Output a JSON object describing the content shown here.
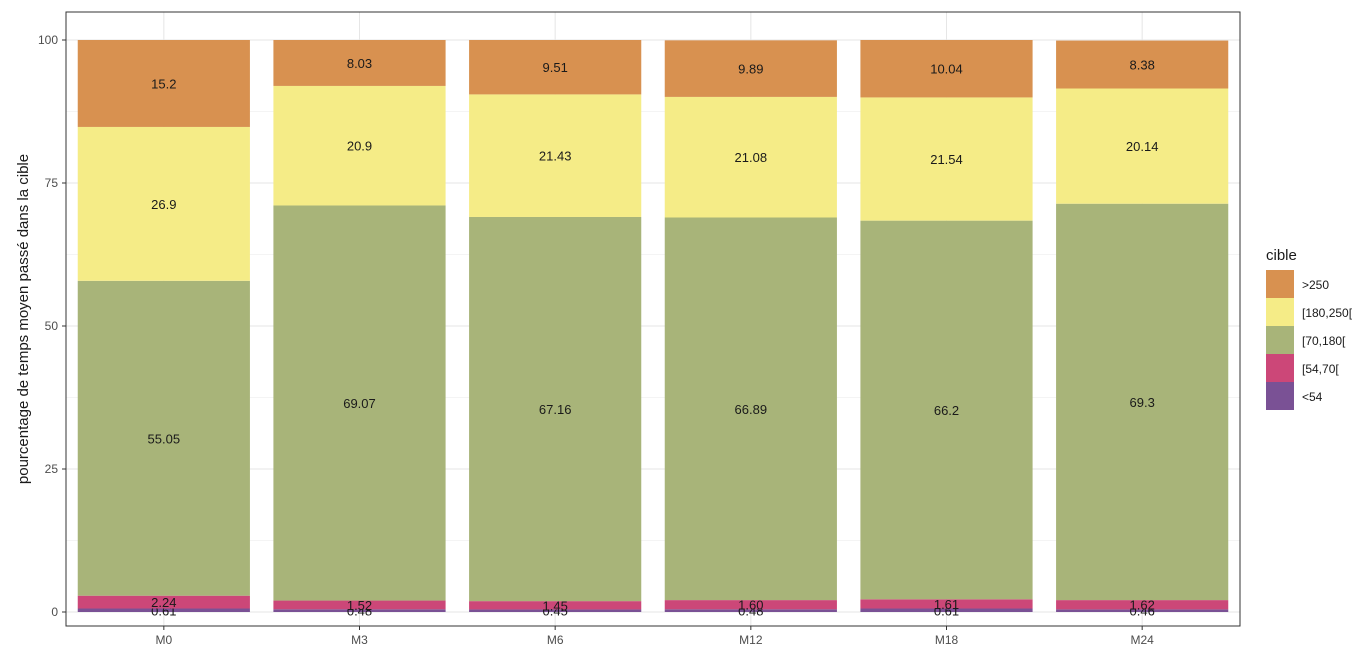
{
  "chart_data": {
    "type": "bar",
    "stacked": true,
    "categories": [
      "M0",
      "M3",
      "M6",
      "M12",
      "M18",
      "M24"
    ],
    "series": [
      {
        "name": "<54",
        "color": "#7a5195",
        "values": [
          0.61,
          0.48,
          0.45,
          0.48,
          0.61,
          0.46
        ]
      },
      {
        "name": "[54,70[",
        "color": "#cc4778",
        "values": [
          2.24,
          1.52,
          1.45,
          1.6,
          1.61,
          1.62
        ]
      },
      {
        "name": "[70,180[",
        "color": "#a8b479",
        "values": [
          55.05,
          69.07,
          67.16,
          66.89,
          66.2,
          69.3
        ]
      },
      {
        "name": "[180,250[",
        "color": "#f5ec87",
        "values": [
          26.9,
          20.9,
          21.43,
          21.08,
          21.54,
          20.14
        ]
      },
      {
        "name": ">250",
        "color": "#d89150",
        "values": [
          15.2,
          8.03,
          9.51,
          9.89,
          10.04,
          8.38
        ]
      }
    ],
    "data_labels": [
      [
        "0.61",
        "2.24",
        "55.05",
        "26.9",
        "15.2"
      ],
      [
        "0.48",
        "1.52",
        "69.07",
        "20.9",
        "8.03"
      ],
      [
        "0.45",
        "1.45",
        "67.16",
        "21.43",
        "9.51"
      ],
      [
        "0.48",
        "1.60",
        "66.89",
        "21.08",
        "9.89"
      ],
      [
        "0.61",
        "1.61",
        "66.2",
        "21.54",
        "10.04"
      ],
      [
        "0.46",
        "1.62",
        "69.3",
        "20.14",
        "8.38"
      ]
    ],
    "ylabel": "pourcentage de temps moyen passé dans la cible",
    "xlabel": "",
    "ylim": [
      0,
      100
    ],
    "yticks": [
      0,
      25,
      50,
      75,
      100
    ],
    "legend_title": "cible",
    "legend_order": [
      ">250",
      "[180,250[",
      "[70,180[",
      "[54,70[",
      "<54"
    ],
    "legend_position": "right",
    "grid": true
  }
}
